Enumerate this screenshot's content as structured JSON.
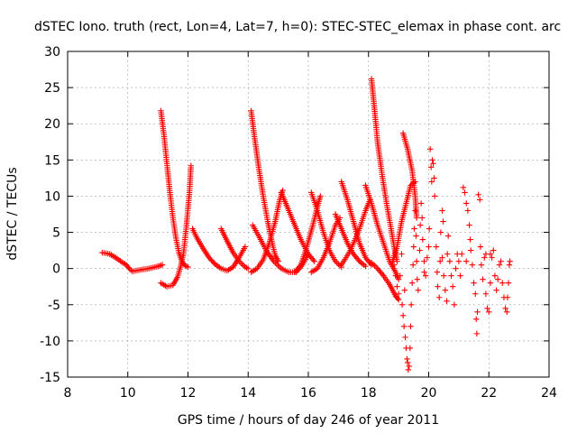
{
  "chart_data": {
    "type": "scatter",
    "title": "dSTEC Iono. truth (rect, Lon=4, Lat=7, h=0): STEC-STEC_elemax in phase cont. arc",
    "xlabel": "GPS time / hours of day 246 of year 2011",
    "ylabel": "dSTEC  / TECUs",
    "xlim": [
      8,
      24
    ],
    "ylim": [
      -15,
      30
    ],
    "x_ticks": [
      8,
      10,
      12,
      14,
      16,
      18,
      20,
      22,
      24
    ],
    "y_ticks": [
      -15,
      -10,
      -5,
      0,
      5,
      10,
      15,
      20,
      25,
      30
    ],
    "grid": true,
    "marker": "+",
    "color": "#ff0000",
    "series": [
      {
        "segments": [
          [
            [
              9.15,
              2.2
            ],
            [
              9.4,
              2.0
            ],
            [
              9.6,
              1.5
            ],
            [
              9.8,
              0.9
            ],
            [
              9.95,
              0.5
            ],
            [
              10.05,
              0.0
            ],
            [
              10.15,
              -0.4
            ],
            [
              10.4,
              -0.2
            ],
            [
              10.7,
              0.0
            ],
            [
              11.0,
              0.3
            ],
            [
              11.15,
              0.5
            ]
          ],
          [
            [
              11.1,
              21.8
            ],
            [
              11.2,
              18.5
            ],
            [
              11.3,
              14.5
            ],
            [
              11.4,
              10.5
            ],
            [
              11.5,
              7.0
            ],
            [
              11.6,
              4.2
            ],
            [
              11.7,
              2.2
            ],
            [
              11.8,
              1.0
            ],
            [
              11.9,
              0.4
            ],
            [
              12.0,
              0.2
            ]
          ],
          [
            [
              11.1,
              -2.0
            ],
            [
              11.3,
              -2.5
            ],
            [
              11.5,
              -2.3
            ],
            [
              11.65,
              -1.2
            ],
            [
              11.75,
              0.2
            ],
            [
              11.85,
              2.0
            ],
            [
              11.95,
              6.0
            ],
            [
              12.05,
              10.5
            ],
            [
              12.1,
              14.2
            ]
          ],
          [
            [
              12.15,
              5.5
            ],
            [
              12.3,
              4.2
            ],
            [
              12.5,
              2.8
            ],
            [
              12.7,
              1.5
            ],
            [
              12.9,
              0.6
            ],
            [
              13.1,
              0.0
            ],
            [
              13.3,
              -0.3
            ],
            [
              13.5,
              0.2
            ],
            [
              13.7,
              1.5
            ],
            [
              13.9,
              3.0
            ]
          ],
          [
            [
              13.1,
              5.5
            ],
            [
              13.3,
              3.8
            ],
            [
              13.5,
              2.2
            ],
            [
              13.7,
              1.0
            ],
            [
              13.9,
              0.2
            ],
            [
              14.0,
              0.0
            ]
          ],
          [
            [
              14.1,
              21.8
            ],
            [
              14.2,
              18.5
            ],
            [
              14.35,
              14.0
            ],
            [
              14.5,
              10.0
            ],
            [
              14.65,
              6.5
            ],
            [
              14.8,
              3.5
            ],
            [
              14.9,
              1.8
            ],
            [
              15.0,
              1.0
            ]
          ],
          [
            [
              14.1,
              -0.5
            ],
            [
              14.3,
              0.0
            ],
            [
              14.5,
              1.2
            ],
            [
              14.7,
              3.5
            ],
            [
              14.9,
              6.5
            ],
            [
              15.05,
              9.5
            ],
            [
              15.15,
              10.8
            ]
          ],
          [
            [
              14.15,
              6.0
            ],
            [
              14.35,
              4.5
            ],
            [
              14.6,
              2.5
            ],
            [
              14.85,
              1.0
            ],
            [
              15.1,
              0.0
            ],
            [
              15.35,
              -0.5
            ],
            [
              15.6,
              -0.5
            ],
            [
              15.8,
              0.5
            ],
            [
              16.0,
              2.0
            ]
          ],
          [
            [
              15.1,
              10.5
            ],
            [
              15.3,
              8.5
            ],
            [
              15.5,
              6.5
            ],
            [
              15.75,
              4.0
            ],
            [
              16.0,
              2.0
            ],
            [
              16.2,
              1.0
            ]
          ],
          [
            [
              15.55,
              -0.5
            ],
            [
              15.75,
              0.5
            ],
            [
              15.95,
              3.0
            ],
            [
              16.15,
              6.0
            ],
            [
              16.3,
              8.5
            ],
            [
              16.4,
              10.0
            ]
          ],
          [
            [
              16.1,
              10.5
            ],
            [
              16.3,
              8.0
            ],
            [
              16.5,
              5.0
            ],
            [
              16.7,
              2.5
            ],
            [
              16.9,
              1.0
            ],
            [
              17.1,
              0.2
            ]
          ],
          [
            [
              16.1,
              -0.5
            ],
            [
              16.3,
              0.0
            ],
            [
              16.5,
              1.5
            ],
            [
              16.7,
              3.5
            ],
            [
              16.9,
              6.0
            ],
            [
              17.05,
              7.0
            ]
          ],
          [
            [
              16.9,
              7.5
            ],
            [
              17.1,
              5.5
            ],
            [
              17.3,
              3.5
            ],
            [
              17.5,
              2.0
            ],
            [
              17.7,
              1.0
            ],
            [
              17.9,
              0.3
            ]
          ],
          [
            [
              17.1,
              12.0
            ],
            [
              17.3,
              9.5
            ],
            [
              17.5,
              6.5
            ],
            [
              17.7,
              3.5
            ],
            [
              17.9,
              1.5
            ],
            [
              18.1,
              0.5
            ]
          ],
          [
            [
              17.9,
              11.5
            ],
            [
              18.1,
              9.0
            ],
            [
              18.3,
              6.0
            ],
            [
              18.5,
              3.5
            ],
            [
              18.7,
              1.0
            ],
            [
              18.9,
              -0.5
            ],
            [
              19.0,
              -1.5
            ]
          ],
          [
            [
              17.1,
              0.5
            ],
            [
              17.4,
              2.5
            ],
            [
              17.7,
              5.5
            ],
            [
              17.9,
              8.0
            ],
            [
              18.05,
              9.5
            ]
          ],
          [
            [
              18.1,
              26.2
            ],
            [
              18.2,
              22.0
            ],
            [
              18.3,
              17.5
            ],
            [
              18.45,
              13.0
            ],
            [
              18.6,
              9.0
            ],
            [
              18.75,
              5.5
            ],
            [
              18.85,
              3.0
            ],
            [
              18.95,
              1.0
            ]
          ],
          [
            [
              18.1,
              0.8
            ],
            [
              18.3,
              0.0
            ],
            [
              18.5,
              -1.0
            ],
            [
              18.7,
              -2.2
            ],
            [
              18.9,
              -3.8
            ],
            [
              19.0,
              -4.3
            ]
          ],
          [
            [
              19.15,
              18.7
            ],
            [
              19.3,
              16.5
            ],
            [
              19.45,
              13.5
            ],
            [
              19.55,
              10.0
            ],
            [
              19.6,
              7.0
            ]
          ],
          [
            [
              18.8,
              1.0
            ],
            [
              18.95,
              3.0
            ],
            [
              19.1,
              6.5
            ],
            [
              19.25,
              9.0
            ],
            [
              19.4,
              11.5
            ],
            [
              19.55,
              12.0
            ]
          ]
        ]
      },
      {
        "points": [
          [
            18.85,
            0.5
          ],
          [
            18.9,
            -1.0
          ],
          [
            18.95,
            -2.5
          ],
          [
            19.0,
            -3.5
          ],
          [
            19.05,
            -1.0
          ],
          [
            19.1,
            2.0
          ],
          [
            19.12,
            -5.0
          ],
          [
            19.15,
            -6.5
          ],
          [
            19.18,
            -8.0
          ],
          [
            19.2,
            -3.0
          ],
          [
            19.22,
            -9.5
          ],
          [
            19.25,
            -11.0
          ],
          [
            19.28,
            -12.5
          ],
          [
            19.3,
            -13.0
          ],
          [
            19.32,
            -14.0
          ],
          [
            19.35,
            -13.5
          ],
          [
            19.38,
            -11.0
          ],
          [
            19.4,
            -8.0
          ],
          [
            19.42,
            -5.0
          ],
          [
            19.45,
            -2.0
          ],
          [
            19.48,
            0.5
          ],
          [
            19.5,
            3.0
          ],
          [
            19.52,
            5.5
          ],
          [
            19.55,
            8.0
          ],
          [
            19.58,
            4.5
          ],
          [
            19.6,
            1.0
          ],
          [
            19.62,
            -1.5
          ],
          [
            19.65,
            -3.0
          ],
          [
            19.7,
            2.5
          ],
          [
            19.72,
            6.0
          ],
          [
            19.75,
            9.0
          ],
          [
            19.78,
            7.0
          ],
          [
            19.8,
            4.0
          ],
          [
            19.85,
            1.0
          ],
          [
            19.9,
            -1.0
          ],
          [
            19.95,
            1.5
          ],
          [
            20.0,
            3.0
          ],
          [
            20.02,
            5.5
          ],
          [
            20.05,
            16.5
          ],
          [
            20.08,
            14.0
          ],
          [
            20.1,
            12.0
          ],
          [
            20.12,
            15.0
          ],
          [
            20.15,
            14.5
          ],
          [
            20.18,
            12.5
          ],
          [
            20.2,
            10.0
          ],
          [
            20.25,
            3.0
          ],
          [
            20.28,
            -0.5
          ],
          [
            20.3,
            -2.5
          ],
          [
            20.35,
            -4.0
          ],
          [
            20.38,
            1.0
          ],
          [
            20.4,
            5.0
          ],
          [
            20.45,
            8.0
          ],
          [
            20.48,
            6.5
          ],
          [
            20.5,
            -1.0
          ],
          [
            20.55,
            -3.0
          ],
          [
            20.6,
            -4.5
          ],
          [
            20.62,
            2.0
          ],
          [
            20.65,
            4.5
          ],
          [
            20.7,
            1.0
          ],
          [
            20.75,
            -1.0
          ],
          [
            20.8,
            -2.5
          ],
          [
            20.85,
            -5.0
          ],
          [
            20.9,
            0.0
          ],
          [
            20.95,
            2.0
          ],
          [
            21.0,
            1.0
          ],
          [
            21.05,
            -1.0
          ],
          [
            21.1,
            2.0
          ],
          [
            21.15,
            11.2
          ],
          [
            21.2,
            10.5
          ],
          [
            21.25,
            9.0
          ],
          [
            21.3,
            8.0
          ],
          [
            21.35,
            6.0
          ],
          [
            21.38,
            4.0
          ],
          [
            21.4,
            2.5
          ],
          [
            21.45,
            0.5
          ],
          [
            21.5,
            -2.0
          ],
          [
            21.55,
            -3.5
          ],
          [
            21.58,
            -7.0
          ],
          [
            21.6,
            -9.0
          ],
          [
            21.62,
            -6.0
          ],
          [
            21.65,
            10.2
          ],
          [
            21.7,
            9.5
          ],
          [
            21.72,
            3.0
          ],
          [
            21.75,
            0.5
          ],
          [
            21.8,
            -1.5
          ],
          [
            21.85,
            1.5
          ],
          [
            21.9,
            -3.5
          ],
          [
            21.95,
            -5.5
          ],
          [
            22.0,
            -6.0
          ],
          [
            22.05,
            -2.0
          ],
          [
            22.1,
            1.5
          ],
          [
            22.15,
            2.5
          ],
          [
            22.2,
            -1.0
          ],
          [
            22.25,
            -3.0
          ],
          [
            22.3,
            -1.5
          ],
          [
            22.35,
            0.5
          ],
          [
            22.4,
            1.0
          ],
          [
            22.45,
            -2.0
          ],
          [
            22.5,
            -4.0
          ],
          [
            22.55,
            -5.5
          ],
          [
            22.6,
            -6.0
          ],
          [
            22.62,
            -4.0
          ],
          [
            22.65,
            -2.0
          ],
          [
            22.68,
            0.5
          ],
          [
            22.7,
            1.0
          ],
          [
            21.9,
            2.0
          ],
          [
            22.05,
            2.0
          ],
          [
            21.25,
            1.0
          ],
          [
            20.45,
            1.5
          ],
          [
            19.85,
            -0.5
          ]
        ]
      }
    ]
  }
}
